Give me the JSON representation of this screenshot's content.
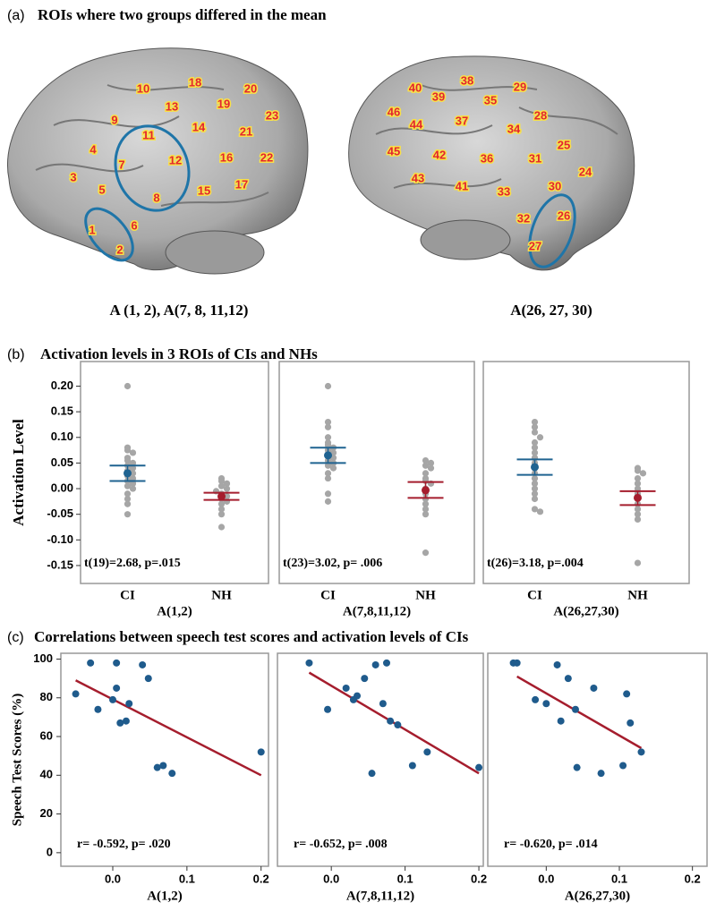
{
  "panels": [
    {
      "label": "(a)",
      "title": "ROIs where two groups differed in the mean"
    },
    {
      "label": "(b)",
      "title": "Activation levels in 3 ROIs of CIs and NHs"
    },
    {
      "label": "(c)",
      "title": "Correlations between speech test scores and activation levels of CIs"
    }
  ],
  "panel_a": {
    "captions": [
      "A (1, 2), A(7, 8, 11,12)",
      "A(26, 27, 30)"
    ],
    "roi_labels": [
      "10",
      "18",
      "20",
      "13",
      "19",
      "9",
      "14",
      "23",
      "11",
      "21",
      "4",
      "7",
      "12",
      "16",
      "22",
      "3",
      "5",
      "8",
      "15",
      "17",
      "6",
      "1",
      "2",
      "40",
      "38",
      "29",
      "39",
      "35",
      "46",
      "44",
      "37",
      "28",
      "34",
      "45",
      "42",
      "36",
      "31",
      "25",
      "43",
      "41",
      "33",
      "24",
      "30",
      "26",
      "32",
      "27"
    ]
  },
  "chart_data": [
    {
      "type": "strip",
      "categories": [
        "CI",
        "NH"
      ],
      "xlabel": "A(1,2)",
      "ylabel": "Activation Level",
      "annotation": "t(19)=2.68, p=.015",
      "ylim": [
        -0.185,
        0.248
      ],
      "yticks": [
        {
          "value": 0.2,
          "label": "0.20"
        },
        0.15,
        {
          "value": 0.1,
          "label": "0.10"
        },
        0.05,
        {
          "value": 0,
          "label": "0.00"
        },
        -0.05,
        {
          "value": -0.1,
          "label": "-0.10"
        },
        -0.15
      ],
      "point_color": "#a6a6a6",
      "mean_colors": [
        "#1f6391",
        "#a51d2d"
      ],
      "series": [
        {
          "values": [
            0.2,
            0.08,
            0.075,
            0.07,
            0.06,
            0.055,
            0.05,
            0.045,
            0.04,
            0.035,
            0.03,
            0.025,
            0.02,
            0.015,
            0.01,
            0.005,
            0,
            -0.01,
            -0.02,
            -0.03,
            -0.05
          ]
        },
        {
          "values": [
            0.02,
            0.015,
            0.01,
            0.005,
            0,
            -0.005,
            -0.01,
            -0.015,
            -0.02,
            -0.025,
            -0.03,
            -0.04,
            -0.05,
            -0.075
          ]
        }
      ],
      "means": [
        0.03,
        -0.015
      ],
      "ci_low": [
        0.015,
        -0.022
      ],
      "ci_high": [
        0.045,
        -0.008
      ]
    },
    {
      "type": "strip",
      "categories": [
        "CI",
        "NH"
      ],
      "xlabel": "A(7,8,11,12)",
      "annotation": "t(23)=3.02, p= .006",
      "ylim": [
        -0.185,
        0.248
      ],
      "point_color": "#a6a6a6",
      "mean_colors": [
        "#1f6391",
        "#a51d2d"
      ],
      "series": [
        {
          "values": [
            0.2,
            0.13,
            0.12,
            0.1,
            0.09,
            0.085,
            0.08,
            0.075,
            0.07,
            0.065,
            0.06,
            0.055,
            0.05,
            0.045,
            0.04,
            0.03,
            0.02,
            -0.01,
            -0.025
          ]
        },
        {
          "values": [
            0.055,
            0.05,
            0.045,
            0.04,
            0.03,
            0.02,
            0.015,
            0.01,
            0,
            -0.01,
            -0.02,
            -0.03,
            -0.04,
            -0.05,
            -0.125
          ]
        }
      ],
      "means": [
        0.065,
        -0.003
      ],
      "ci_low": [
        0.05,
        -0.018
      ],
      "ci_high": [
        0.08,
        0.013
      ]
    },
    {
      "type": "strip",
      "categories": [
        "CI",
        "NH"
      ],
      "xlabel": "A(26,27,30)",
      "annotation": "t(26)=3.18, p=.004",
      "ylim": [
        -0.185,
        0.248
      ],
      "point_color": "#a6a6a6",
      "mean_colors": [
        "#1f6391",
        "#a51d2d"
      ],
      "series": [
        {
          "values": [
            0.13,
            0.12,
            0.11,
            0.1,
            0.09,
            0.08,
            0.07,
            0.06,
            0.05,
            0.04,
            0.03,
            0.02,
            0.01,
            0,
            -0.01,
            -0.02,
            -0.04,
            -0.045
          ]
        },
        {
          "values": [
            0.04,
            0.035,
            0.03,
            0.02,
            0.01,
            0,
            -0.01,
            -0.02,
            -0.03,
            -0.04,
            -0.05,
            -0.06,
            -0.145
          ]
        }
      ],
      "means": [
        0.042,
        -0.018
      ],
      "ci_low": [
        0.027,
        -0.032
      ],
      "ci_high": [
        0.057,
        -0.005
      ]
    },
    {
      "type": "scatter",
      "xlabel": "A(1,2)",
      "ylabel": "Speech Test Scores (%)",
      "annotation": "r= -0.592, p= .020",
      "xlim": [
        -0.07,
        0.21
      ],
      "ylim": [
        -7,
        103
      ],
      "xticks": [
        {
          "value": 0,
          "label": "0.0"
        },
        0.1,
        0.2
      ],
      "yticks": [
        0,
        20,
        40,
        60,
        80,
        100
      ],
      "color": "#1f5b8c",
      "line_color": "#a51d2d",
      "x": [
        -0.05,
        -0.03,
        -0.02,
        0.005,
        0,
        0.005,
        0.01,
        0.018,
        0.022,
        0.04,
        0.048,
        0.06,
        0.068,
        0.08,
        0.2
      ],
      "y": [
        82,
        98,
        74,
        98,
        79,
        85,
        67,
        68,
        77,
        97,
        90,
        44,
        45,
        41,
        52
      ],
      "fit": {
        "x": [
          -0.05,
          0.2
        ],
        "y": [
          89,
          40
        ]
      }
    },
    {
      "type": "scatter",
      "xlabel": "A(7,8,11,12)",
      "annotation": "r= -0.652, p= .008",
      "xlim": [
        -0.073,
        0.206
      ],
      "ylim": [
        -7,
        103
      ],
      "xticks": [
        {
          "value": 0,
          "label": "0.0"
        },
        0.1,
        0.2
      ],
      "color": "#1f5b8c",
      "line_color": "#a51d2d",
      "x": [
        -0.03,
        -0.005,
        0.02,
        0.03,
        0.035,
        0.045,
        0.06,
        0.07,
        0.075,
        0.08,
        0.09,
        0.055,
        0.11,
        0.13,
        0.2
      ],
      "y": [
        98,
        74,
        85,
        79,
        81,
        90,
        97,
        77,
        98,
        68,
        66,
        41,
        45,
        52,
        44
      ],
      "fit": {
        "x": [
          -0.03,
          0.2
        ],
        "y": [
          93,
          41
        ]
      }
    },
    {
      "type": "scatter",
      "xlabel": "A(26,27,30)",
      "annotation": "r= -0.620, p= .014",
      "xlim": [
        -0.08,
        0.22
      ],
      "ylim": [
        -7,
        103
      ],
      "xticks": [
        {
          "value": 0,
          "label": "0.0"
        },
        0.1,
        0.2
      ],
      "color": "#1f5b8c",
      "line_color": "#a51d2d",
      "x": [
        -0.045,
        -0.04,
        -0.015,
        0,
        0.015,
        0.02,
        0.03,
        0.04,
        0.042,
        0.065,
        0.075,
        0.105,
        0.11,
        0.115,
        0.13
      ],
      "y": [
        98,
        98,
        79,
        77,
        97,
        68,
        90,
        74,
        44,
        85,
        41,
        45,
        82,
        67,
        52
      ],
      "fit": {
        "x": [
          -0.04,
          0.13
        ],
        "y": [
          91,
          54
        ]
      }
    }
  ]
}
